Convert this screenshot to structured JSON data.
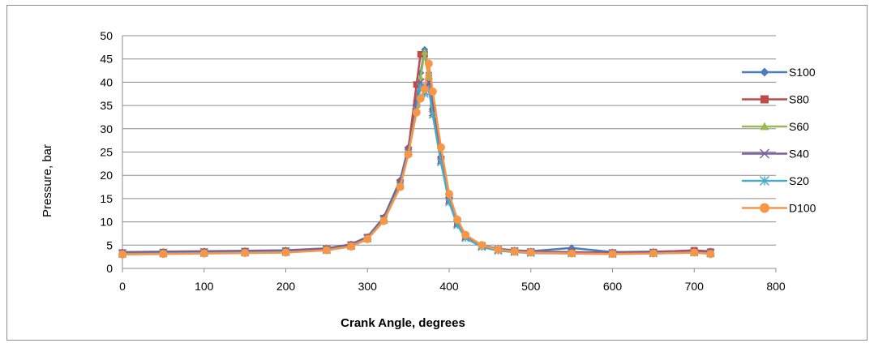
{
  "chart_data": {
    "type": "line",
    "title": "",
    "xlabel": "Crank Angle, degrees",
    "ylabel": "Pressure, bar",
    "xlim": [
      0,
      800
    ],
    "ylim": [
      0,
      50
    ],
    "x_ticks": [
      0,
      100,
      200,
      300,
      400,
      500,
      600,
      700,
      800
    ],
    "y_ticks": [
      0,
      5,
      10,
      15,
      20,
      25,
      30,
      35,
      40,
      45,
      50
    ],
    "grid": "horizontal",
    "legend_position": "right",
    "x": [
      0,
      50,
      100,
      150,
      200,
      250,
      280,
      300,
      320,
      340,
      350,
      360,
      365,
      370,
      375,
      380,
      390,
      400,
      410,
      420,
      440,
      460,
      480,
      500,
      550,
      600,
      650,
      700,
      720
    ],
    "series": [
      {
        "name": "S100",
        "color": "#4a7ebb",
        "marker": "diamond",
        "values": [
          3.5,
          3.6,
          3.7,
          3.8,
          3.9,
          4.3,
          5.2,
          6.8,
          11,
          19,
          26,
          36,
          42,
          47,
          42,
          35,
          24,
          15,
          10,
          7,
          5,
          4.2,
          3.9,
          3.7,
          4.4,
          3.5,
          3.6,
          3.8,
          3.7
        ]
      },
      {
        "name": "S80",
        "color": "#be4b48",
        "marker": "square",
        "values": [
          3.4,
          3.5,
          3.6,
          3.7,
          3.8,
          4.2,
          5.1,
          6.7,
          10.8,
          18.5,
          25.5,
          39.5,
          46,
          46,
          41,
          34,
          23.5,
          14.8,
          9.8,
          6.9,
          4.9,
          4.1,
          3.8,
          3.6,
          3.5,
          3.4,
          3.5,
          3.9,
          3.6
        ]
      },
      {
        "name": "S60",
        "color": "#98b954",
        "marker": "triangle",
        "values": [
          3.2,
          3.3,
          3.4,
          3.5,
          3.6,
          4.0,
          4.9,
          6.5,
          10.5,
          18,
          25,
          34,
          41,
          46.5,
          41,
          33,
          23,
          14.5,
          9.5,
          6.7,
          4.7,
          3.9,
          3.6,
          3.4,
          3.3,
          3.2,
          3.3,
          3.5,
          3.3
        ]
      },
      {
        "name": "S40",
        "color": "#7d5fa0",
        "marker": "x",
        "values": [
          3.3,
          3.4,
          3.5,
          3.6,
          3.7,
          4.1,
          5.0,
          6.6,
          10.6,
          18.2,
          25.2,
          34.5,
          40,
          38,
          40,
          33.5,
          23.2,
          14.6,
          9.6,
          6.8,
          4.8,
          4.0,
          3.7,
          3.5,
          3.4,
          3.3,
          3.4,
          3.6,
          3.4
        ]
      },
      {
        "name": "S20",
        "color": "#4bacc6",
        "marker": "asterisk",
        "values": [
          3.1,
          3.2,
          3.3,
          3.4,
          3.5,
          3.9,
          4.8,
          6.4,
          10.4,
          17.8,
          24.8,
          34,
          39,
          37.5,
          38.5,
          33,
          22.8,
          14.2,
          9.3,
          6.5,
          4.6,
          3.8,
          3.5,
          3.3,
          3.2,
          3.1,
          3.2,
          3.4,
          3.2
        ]
      },
      {
        "name": "D100",
        "color": "#f79646",
        "marker": "circle",
        "values": [
          3.0,
          3.1,
          3.2,
          3.3,
          3.4,
          3.9,
          4.7,
          6.3,
          10.2,
          17.5,
          24.5,
          33.5,
          36.5,
          38.5,
          44,
          38,
          26,
          16,
          10.5,
          7.2,
          5.0,
          4.0,
          3.6,
          3.4,
          3.2,
          3.1,
          3.2,
          3.4,
          3.1
        ]
      }
    ]
  }
}
